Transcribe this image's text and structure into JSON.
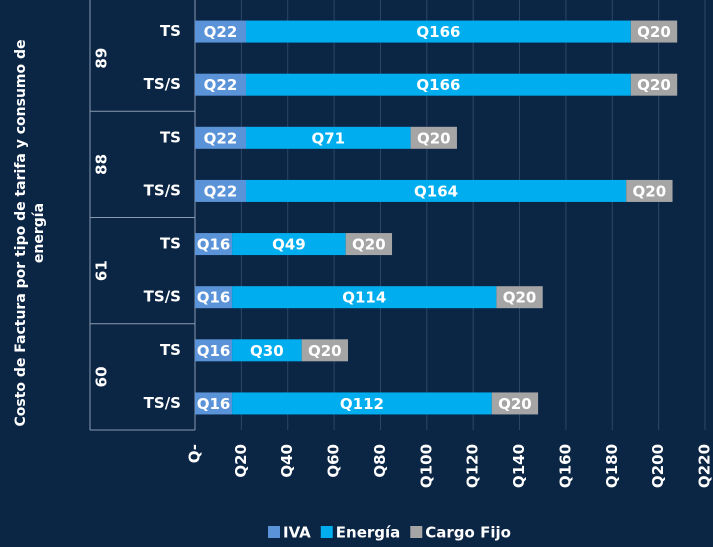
{
  "chart_data": {
    "type": "stacked-barh",
    "axis_label": "Costo de Factura por tipo de tarifa y consumo de energía",
    "groups": [
      "89",
      "88",
      "61",
      "60"
    ],
    "categories": [
      "TS",
      "TS/S",
      "TS",
      "TS/S",
      "TS",
      "TS/S",
      "TS",
      "TS/S"
    ],
    "series": [
      {
        "name": "IVA",
        "color": "#5b93d8",
        "values": [
          22,
          22,
          22,
          22,
          16,
          16,
          16,
          16
        ],
        "value_labels": [
          "Q22",
          "Q22",
          "Q22",
          "Q22",
          "Q16",
          "Q16",
          "Q16",
          "Q16"
        ]
      },
      {
        "name": "Energía",
        "color": "#00aeef",
        "values": [
          166,
          166,
          71,
          164,
          49,
          114,
          30,
          112
        ],
        "value_labels": [
          "Q166",
          "Q166",
          "Q71",
          "Q164",
          "Q49",
          "Q114",
          "Q30",
          "Q112"
        ]
      },
      {
        "name": "Cargo Fijo",
        "color": "#a5a5a5",
        "values": [
          20,
          20,
          20,
          20,
          20,
          20,
          20,
          20
        ],
        "value_labels": [
          "Q20",
          "Q20",
          "Q20",
          "Q20",
          "Q20",
          "Q20",
          "Q20",
          "Q20"
        ]
      }
    ],
    "xlim": [
      0,
      220
    ],
    "xticks": [
      {
        "value": 0,
        "label": "Q-"
      },
      {
        "value": 20,
        "label": "Q20"
      },
      {
        "value": 40,
        "label": "Q40"
      },
      {
        "value": 60,
        "label": "Q60"
      },
      {
        "value": 80,
        "label": "Q80"
      },
      {
        "value": 100,
        "label": "Q100"
      },
      {
        "value": 120,
        "label": "Q120"
      },
      {
        "value": 140,
        "label": "Q140"
      },
      {
        "value": 160,
        "label": "Q160"
      },
      {
        "value": 180,
        "label": "Q180"
      },
      {
        "value": 200,
        "label": "Q200"
      },
      {
        "value": 220,
        "label": "Q220"
      }
    ],
    "grid": true,
    "legend": "bottom"
  }
}
